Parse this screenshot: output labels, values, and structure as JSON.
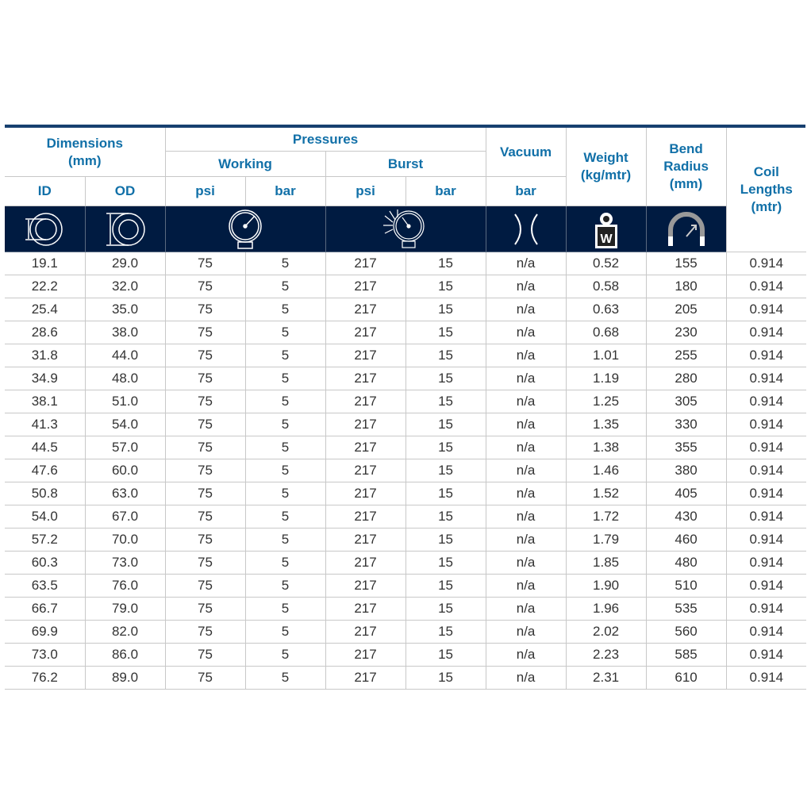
{
  "header": {
    "dimensions": "Dimensions",
    "dimensions_unit": "(mm)",
    "pressures": "Pressures",
    "working": "Working",
    "burst": "Burst",
    "vacuum": "Vacuum",
    "weight": "Weight",
    "weight_unit": "(kg/mtr)",
    "bend": "Bend",
    "radius": "Radius",
    "bend_unit": "(mm)",
    "coil": "Coil",
    "lengths": "Lengths",
    "coil_unit": "(mtr)",
    "id": "ID",
    "od": "OD",
    "w_psi": "psi",
    "w_bar": "bar",
    "b_psi": "psi",
    "b_bar": "bar",
    "v_bar": "bar"
  },
  "icons": [
    "inner-diameter-icon",
    "outer-diameter-icon",
    "pressure-gauge-icon",
    "burst-gauge-icon",
    "vacuum-icon",
    "weight-icon",
    "bend-radius-icon"
  ],
  "colors": {
    "header_text": "#1170a8",
    "icon_band": "#001b41",
    "top_rule": "#17406f"
  },
  "rows": [
    [
      "19.1",
      "29.0",
      "75",
      "5",
      "217",
      "15",
      "n/a",
      "0.52",
      "155",
      "0.914"
    ],
    [
      "22.2",
      "32.0",
      "75",
      "5",
      "217",
      "15",
      "n/a",
      "0.58",
      "180",
      "0.914"
    ],
    [
      "25.4",
      "35.0",
      "75",
      "5",
      "217",
      "15",
      "n/a",
      "0.63",
      "205",
      "0.914"
    ],
    [
      "28.6",
      "38.0",
      "75",
      "5",
      "217",
      "15",
      "n/a",
      "0.68",
      "230",
      "0.914"
    ],
    [
      "31.8",
      "44.0",
      "75",
      "5",
      "217",
      "15",
      "n/a",
      "1.01",
      "255",
      "0.914"
    ],
    [
      "34.9",
      "48.0",
      "75",
      "5",
      "217",
      "15",
      "n/a",
      "1.19",
      "280",
      "0.914"
    ],
    [
      "38.1",
      "51.0",
      "75",
      "5",
      "217",
      "15",
      "n/a",
      "1.25",
      "305",
      "0.914"
    ],
    [
      "41.3",
      "54.0",
      "75",
      "5",
      "217",
      "15",
      "n/a",
      "1.35",
      "330",
      "0.914"
    ],
    [
      "44.5",
      "57.0",
      "75",
      "5",
      "217",
      "15",
      "n/a",
      "1.38",
      "355",
      "0.914"
    ],
    [
      "47.6",
      "60.0",
      "75",
      "5",
      "217",
      "15",
      "n/a",
      "1.46",
      "380",
      "0.914"
    ],
    [
      "50.8",
      "63.0",
      "75",
      "5",
      "217",
      "15",
      "n/a",
      "1.52",
      "405",
      "0.914"
    ],
    [
      "54.0",
      "67.0",
      "75",
      "5",
      "217",
      "15",
      "n/a",
      "1.72",
      "430",
      "0.914"
    ],
    [
      "57.2",
      "70.0",
      "75",
      "5",
      "217",
      "15",
      "n/a",
      "1.79",
      "460",
      "0.914"
    ],
    [
      "60.3",
      "73.0",
      "75",
      "5",
      "217",
      "15",
      "n/a",
      "1.85",
      "480",
      "0.914"
    ],
    [
      "63.5",
      "76.0",
      "75",
      "5",
      "217",
      "15",
      "n/a",
      "1.90",
      "510",
      "0.914"
    ],
    [
      "66.7",
      "79.0",
      "75",
      "5",
      "217",
      "15",
      "n/a",
      "1.96",
      "535",
      "0.914"
    ],
    [
      "69.9",
      "82.0",
      "75",
      "5",
      "217",
      "15",
      "n/a",
      "2.02",
      "560",
      "0.914"
    ],
    [
      "73.0",
      "86.0",
      "75",
      "5",
      "217",
      "15",
      "n/a",
      "2.23",
      "585",
      "0.914"
    ],
    [
      "76.2",
      "89.0",
      "75",
      "5",
      "217",
      "15",
      "n/a",
      "2.31",
      "610",
      "0.914"
    ]
  ]
}
